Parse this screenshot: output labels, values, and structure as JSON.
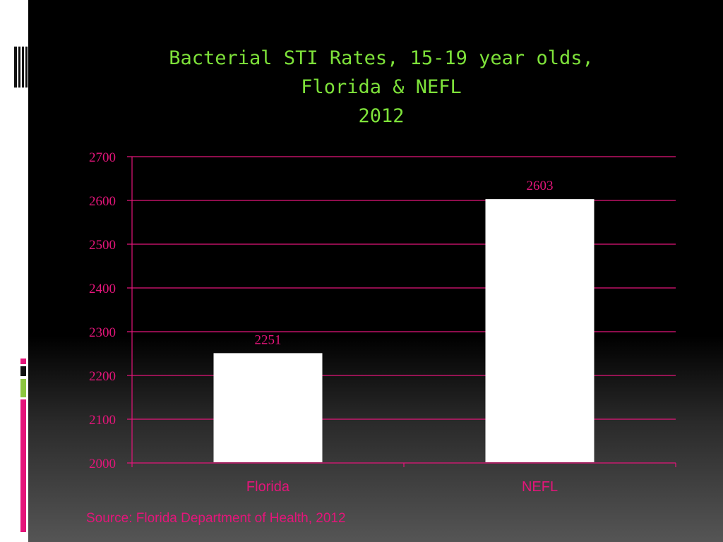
{
  "slide": {
    "title_lines": [
      "Bacterial STI Rates, 15-19 year olds,",
      "Florida & NEFL",
      "2012"
    ],
    "source": "Source: Florida Department of Health, 2012",
    "colors": {
      "title": "#7ee23a",
      "accent_pink": "#e4157a",
      "accent_green": "#8cc63f",
      "bar_fill": "#ffffff",
      "gridline": "#e4157a",
      "axis_text": "#e4157a",
      "data_label": "#e4157a"
    }
  },
  "chart_data": {
    "type": "bar",
    "categories": [
      "Florida",
      "NEFL"
    ],
    "values": [
      2251,
      2603
    ],
    "data_labels": [
      "2251",
      "2603"
    ],
    "title": "Bacterial STI Rates, 15-19 year olds, Florida & NEFL 2012",
    "xlabel": "",
    "ylabel": "",
    "ylim": [
      2000,
      2700
    ],
    "yticks": [
      2000,
      2100,
      2200,
      2300,
      2400,
      2500,
      2600,
      2700
    ],
    "ytick_labels": [
      "2000",
      "2100",
      "2200",
      "2300",
      "2400",
      "2500",
      "2600",
      "2700"
    ],
    "grid": true,
    "legend": "none"
  }
}
